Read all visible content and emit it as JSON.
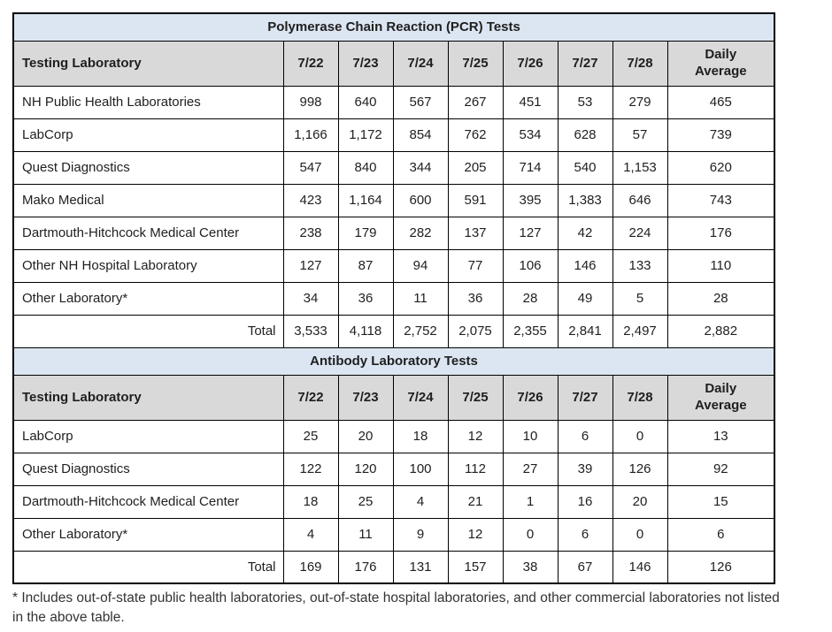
{
  "colors": {
    "title_band": "#dce6f2",
    "header_band": "#d9d9d9",
    "border": "#000000"
  },
  "table": {
    "sections": [
      {
        "key": "pcr",
        "title": "Polymerase Chain Reaction (PCR) Tests",
        "header": {
          "lab": "Testing Laboratory",
          "dates": [
            "7/22",
            "7/23",
            "7/24",
            "7/25",
            "7/26",
            "7/27",
            "7/28"
          ],
          "daily_average": "Daily Average"
        },
        "rows": [
          {
            "lab": "NH Public Health Laboratories",
            "values": [
              "998",
              "640",
              "567",
              "267",
              "451",
              "53",
              "279",
              "465"
            ]
          },
          {
            "lab": "LabCorp",
            "values": [
              "1,166",
              "1,172",
              "854",
              "762",
              "534",
              "628",
              "57",
              "739"
            ]
          },
          {
            "lab": "Quest Diagnostics",
            "values": [
              "547",
              "840",
              "344",
              "205",
              "714",
              "540",
              "1,153",
              "620"
            ]
          },
          {
            "lab": "Mako Medical",
            "values": [
              "423",
              "1,164",
              "600",
              "591",
              "395",
              "1,383",
              "646",
              "743"
            ]
          },
          {
            "lab": "Dartmouth-Hitchcock Medical Center",
            "values": [
              "238",
              "179",
              "282",
              "137",
              "127",
              "42",
              "224",
              "176"
            ]
          },
          {
            "lab": "Other NH Hospital Laboratory",
            "values": [
              "127",
              "87",
              "94",
              "77",
              "106",
              "146",
              "133",
              "110"
            ]
          },
          {
            "lab": "Other Laboratory*",
            "values": [
              "34",
              "36",
              "11",
              "36",
              "28",
              "49",
              "5",
              "28"
            ]
          }
        ],
        "total": {
          "label": "Total",
          "values": [
            "3,533",
            "4,118",
            "2,752",
            "2,075",
            "2,355",
            "2,841",
            "2,497",
            "2,882"
          ]
        }
      },
      {
        "key": "antibody",
        "title": "Antibody Laboratory Tests",
        "header": {
          "lab": "Testing Laboratory",
          "dates": [
            "7/22",
            "7/23",
            "7/24",
            "7/25",
            "7/26",
            "7/27",
            "7/28"
          ],
          "daily_average": "Daily Average"
        },
        "rows": [
          {
            "lab": "LabCorp",
            "values": [
              "25",
              "20",
              "18",
              "12",
              "10",
              "6",
              "0",
              "13"
            ]
          },
          {
            "lab": "Quest Diagnostics",
            "values": [
              "122",
              "120",
              "100",
              "112",
              "27",
              "39",
              "126",
              "92"
            ]
          },
          {
            "lab": "Dartmouth-Hitchcock Medical Center",
            "values": [
              "18",
              "25",
              "4",
              "21",
              "1",
              "16",
              "20",
              "15"
            ]
          },
          {
            "lab": "Other Laboratory*",
            "values": [
              "4",
              "11",
              "9",
              "12",
              "0",
              "6",
              "0",
              "6"
            ]
          }
        ],
        "total": {
          "label": "Total",
          "values": [
            "169",
            "176",
            "131",
            "157",
            "38",
            "67",
            "146",
            "126"
          ]
        }
      }
    ]
  },
  "footnote": "* Includes out-of-state public health laboratories, out-of-state hospital laboratories, and other commercial laboratories not listed in the above table."
}
